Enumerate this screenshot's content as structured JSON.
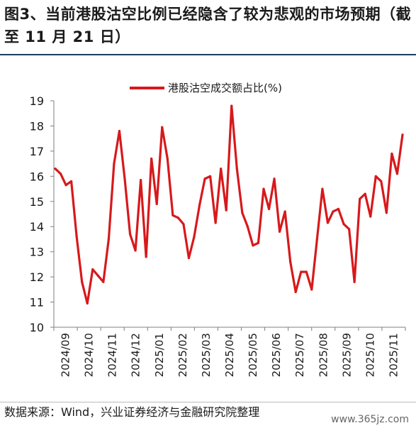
{
  "header": {
    "title": "图3、当前港股沽空比例已经隐含了较为悲观的市场预期（截至 11 月 21 日）"
  },
  "footer": {
    "source": "数据来源：Wind，兴业证券经济与金融研究院整理",
    "watermark": "www.365jz.com"
  },
  "colors": {
    "series": "#d7191c",
    "title_rule": "#1f3864",
    "axis": "#7f7f7f"
  },
  "chart_data": {
    "type": "line",
    "title": "",
    "xlabel": "",
    "ylabel": "",
    "ylim": [
      10,
      19
    ],
    "yticks": [
      "10",
      "11",
      "12",
      "13",
      "14",
      "15",
      "16",
      "17",
      "18",
      "19"
    ],
    "xtick_labels": [
      "2024/09",
      "2024/10",
      "2024/11",
      "2024/12",
      "2025/01",
      "2025/02",
      "2025/03",
      "2025/04",
      "2025/05",
      "2025/06",
      "2025/07",
      "2025/08",
      "2025/09",
      "2025/10",
      "2025/11"
    ],
    "grid": false,
    "legend_position": "top",
    "series": [
      {
        "name": "港股沽空成交额占比(%)",
        "values": [
          16.3,
          16.1,
          15.65,
          15.8,
          13.6,
          11.8,
          10.95,
          12.3,
          12.05,
          11.8,
          13.5,
          16.5,
          17.8,
          15.9,
          13.7,
          13.05,
          15.85,
          12.8,
          16.7,
          14.9,
          17.95,
          16.7,
          14.45,
          14.35,
          14.1,
          12.75,
          13.6,
          14.85,
          15.9,
          16.0,
          14.15,
          16.3,
          14.65,
          18.8,
          16.3,
          14.55,
          14.0,
          13.25,
          13.35,
          15.5,
          14.7,
          15.9,
          13.8,
          14.6,
          12.6,
          11.4,
          12.2,
          12.2,
          11.5,
          13.5,
          15.5,
          14.15,
          14.6,
          14.7,
          14.1,
          13.9,
          11.8,
          15.1,
          15.3,
          14.4,
          16.0,
          15.8,
          14.55,
          16.9,
          16.1,
          17.65
        ]
      }
    ]
  }
}
